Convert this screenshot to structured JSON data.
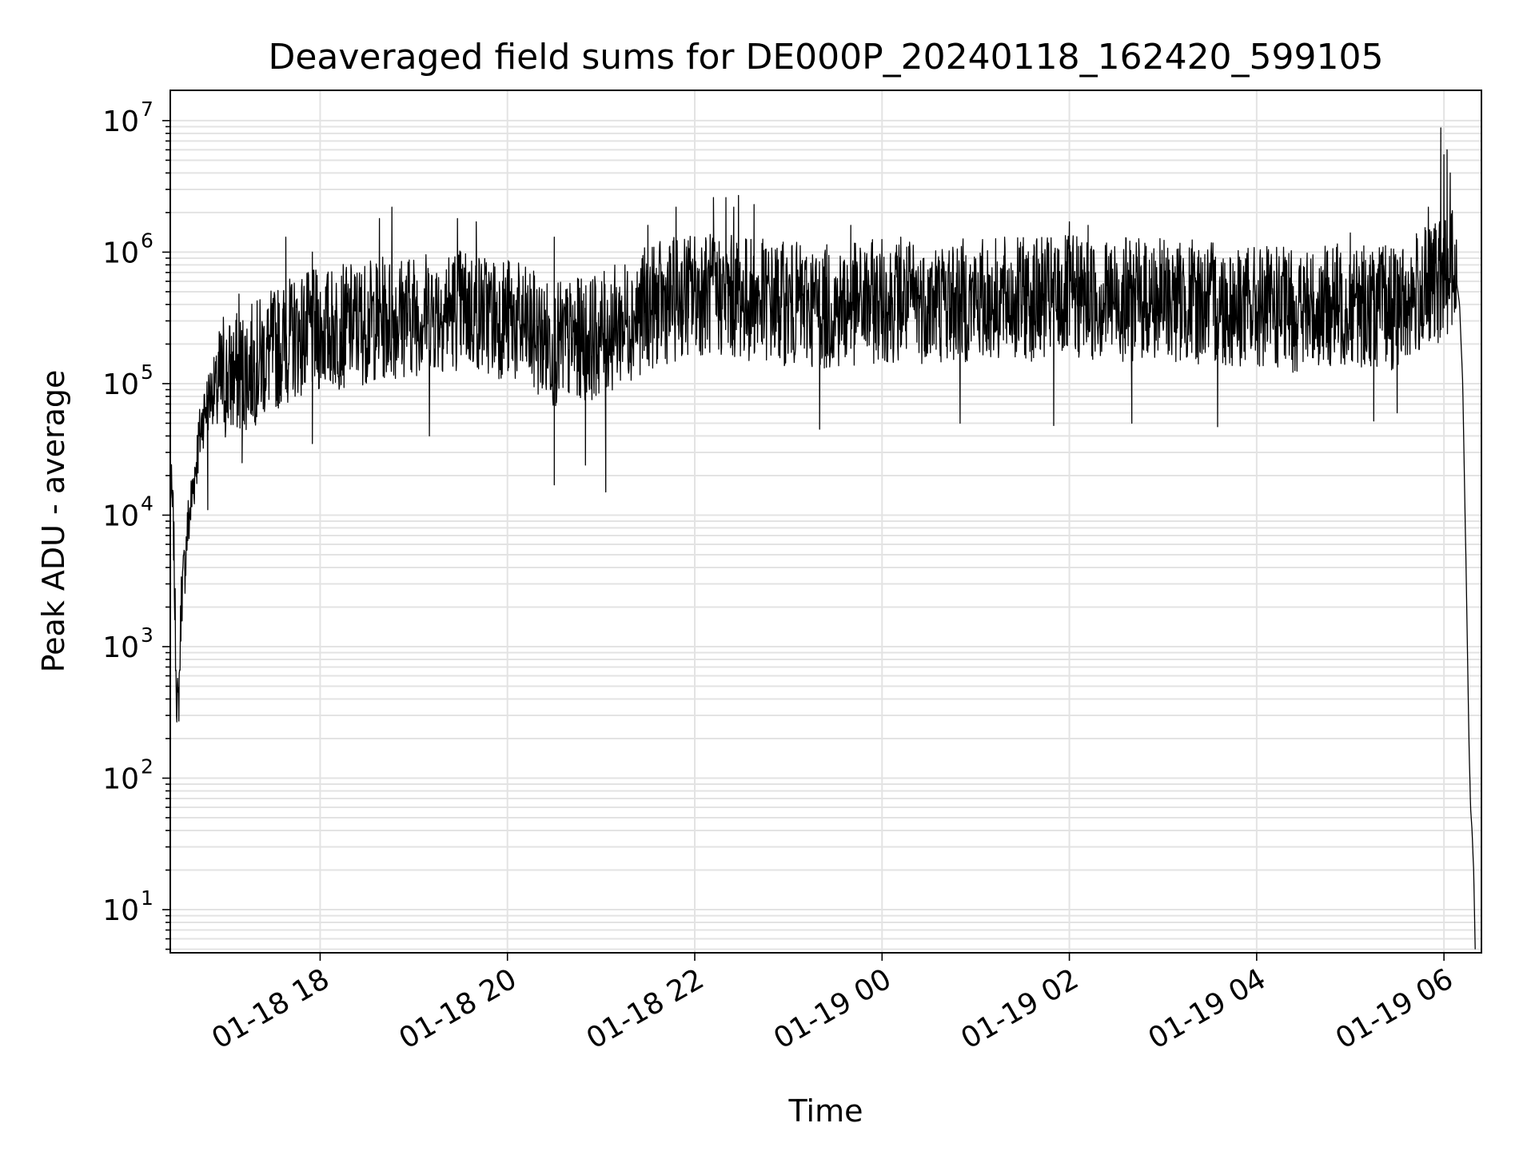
{
  "chart_data": {
    "type": "line",
    "title": "Deaveraged field sums for DE000P_20240118_162420_599105",
    "xlabel": "Time",
    "ylabel": "Peak ADU - average",
    "yscale": "log",
    "grid": true,
    "xlim": [
      "01-18 16:24",
      "01-19 06:24"
    ],
    "ylim": [
      4.7,
      17000000
    ],
    "x_ticks": [
      "01-18 18",
      "01-18 20",
      "01-18 22",
      "01-19 00",
      "01-19 02",
      "01-19 04",
      "01-19 06"
    ],
    "y_ticks": [
      {
        "base": "10",
        "exp": "1"
      },
      {
        "base": "10",
        "exp": "2"
      },
      {
        "base": "10",
        "exp": "3"
      },
      {
        "base": "10",
        "exp": "4"
      },
      {
        "base": "10",
        "exp": "5"
      },
      {
        "base": "10",
        "exp": "6"
      },
      {
        "base": "10",
        "exp": "7"
      }
    ],
    "series": [
      {
        "color": "#000000",
        "points": [
          [
            "01-18 16:24",
            20000
          ],
          [
            "01-18 16:26",
            9000
          ],
          [
            "01-18 16:27",
            2000
          ],
          [
            "01-18 16:28",
            500
          ],
          [
            "01-18 16:29",
            330
          ],
          [
            "01-18 16:30",
            700
          ],
          [
            "01-18 16:31",
            2500
          ],
          [
            "01-18 16:33",
            4000
          ],
          [
            "01-18 16:35",
            8000
          ],
          [
            "01-18 16:38",
            15000
          ],
          [
            "01-18 16:41",
            30000
          ],
          [
            "01-18 16:45",
            60000
          ],
          [
            "01-18 16:50",
            90000
          ],
          [
            "01-18 17:00",
            120000
          ],
          [
            "01-18 17:15",
            150000
          ],
          [
            "01-18 17:30",
            200000
          ],
          [
            "01-18 17:45",
            260000
          ],
          [
            "01-18 18:00",
            280000
          ],
          [
            "01-18 18:30",
            330000
          ],
          [
            "01-18 19:00",
            380000
          ],
          [
            "01-18 19:30",
            420000
          ],
          [
            "01-18 20:00",
            350000
          ],
          [
            "01-18 20:30",
            220000
          ],
          [
            "01-18 21:00",
            260000
          ],
          [
            "01-18 21:30",
            420000
          ],
          [
            "01-18 22:00",
            550000
          ],
          [
            "01-18 22:30",
            500000
          ],
          [
            "01-18 23:00",
            450000
          ],
          [
            "01-18 23:30",
            420000
          ],
          [
            "01-19 00:00",
            480000
          ],
          [
            "01-19 00:30",
            470000
          ],
          [
            "01-19 01:00",
            480000
          ],
          [
            "01-19 01:30",
            490000
          ],
          [
            "01-19 02:00",
            500000
          ],
          [
            "01-19 02:30",
            490000
          ],
          [
            "01-19 03:00",
            480000
          ],
          [
            "01-19 03:30",
            460000
          ],
          [
            "01-19 04:00",
            420000
          ],
          [
            "01-19 04:30",
            400000
          ],
          [
            "01-19 05:00",
            450000
          ],
          [
            "01-19 05:30",
            420000
          ],
          [
            "01-19 05:50",
            600000
          ],
          [
            "01-19 06:00",
            700000
          ],
          [
            "01-19 06:05",
            900000
          ],
          [
            "01-19 06:08",
            600000
          ],
          [
            "01-19 06:10",
            400000
          ],
          [
            "01-19 06:12",
            100000
          ],
          [
            "01-19 06:14",
            5000
          ],
          [
            "01-19 06:16",
            200
          ],
          [
            "01-19 06:17",
            60
          ],
          [
            "01-19 06:18",
            40
          ],
          [
            "01-19 06:19",
            20
          ],
          [
            "01-19 06:20",
            5
          ]
        ],
        "spikes": [
          [
            "01-18 16:58",
            320000
          ],
          [
            "01-18 17:08",
            480000
          ],
          [
            "01-18 17:38",
            1300000
          ],
          [
            "01-18 17:55",
            1000000
          ],
          [
            "01-18 18:38",
            1800000
          ],
          [
            "01-18 18:46",
            2200000
          ],
          [
            "01-18 19:28",
            1800000
          ],
          [
            "01-18 19:40",
            1700000
          ],
          [
            "01-18 20:30",
            1300000
          ],
          [
            "01-18 21:30",
            1600000
          ],
          [
            "01-18 21:48",
            2200000
          ],
          [
            "01-18 22:12",
            2600000
          ],
          [
            "01-18 22:20",
            2600000
          ],
          [
            "01-18 22:25",
            2200000
          ],
          [
            "01-18 22:28",
            2700000
          ],
          [
            "01-18 22:38",
            2300000
          ],
          [
            "01-18 23:40",
            1600000
          ],
          [
            "01-19 00:12",
            1300000
          ],
          [
            "01-19 02:00",
            1700000
          ],
          [
            "01-19 02:12",
            1600000
          ],
          [
            "01-19 05:00",
            1400000
          ],
          [
            "01-19 05:50",
            2200000
          ],
          [
            "01-19 05:58",
            8800000
          ],
          [
            "01-19 06:00",
            5500000
          ],
          [
            "01-19 06:02",
            6000000
          ],
          [
            "01-19 06:04",
            4000000
          ],
          [
            "01-18 20:30",
            17000
          ],
          [
            "01-18 21:03",
            15000
          ],
          [
            "01-18 20:50",
            24000
          ],
          [
            "01-18 19:10",
            40000
          ],
          [
            "01-18 17:55",
            35000
          ],
          [
            "01-18 17:10",
            25000
          ],
          [
            "01-18 16:48",
            11000
          ],
          [
            "01-18 23:20",
            45000
          ],
          [
            "01-19 03:35",
            47000
          ],
          [
            "01-19 00:50",
            50000
          ],
          [
            "01-19 01:50",
            48000
          ],
          [
            "01-19 02:40",
            50000
          ],
          [
            "01-19 05:15",
            52000
          ],
          [
            "01-19 05:30",
            60000
          ]
        ]
      }
    ]
  }
}
